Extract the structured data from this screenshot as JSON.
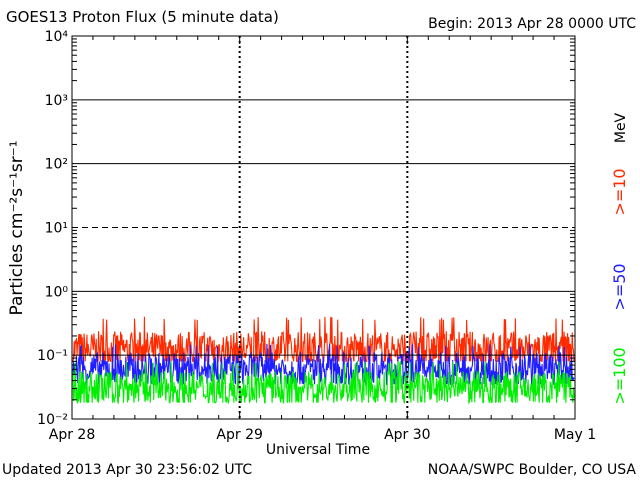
{
  "header": {
    "title": "GOES13 Proton Flux (5 minute data)",
    "begin": "Begin: 2013 Apr 28 0000 UTC"
  },
  "footer": {
    "updated": "Updated 2013 Apr 30 23:56:02 UTC",
    "credit": "NOAA/SWPC Boulder, CO USA"
  },
  "chart_data": {
    "type": "line",
    "title": "GOES13 Proton Flux (5 minute data)",
    "xlabel": "Universal Time",
    "ylabel": "Particles cm⁻²s⁻¹sr⁻¹",
    "yscale": "log",
    "ylim": [
      0.01,
      10000
    ],
    "y_tick_labels": [
      "10⁻²",
      "10⁻¹",
      "10⁰",
      "10¹",
      "10²",
      "10³",
      "10⁴"
    ],
    "x_tick_labels": [
      "Apr 28",
      "Apr 29",
      "Apr 30",
      "May 1"
    ],
    "x_start": "2013-04-28 00:00 UTC",
    "x_end": "2013-05-01 00:00 UTC",
    "thresholds": [
      {
        "value": 10,
        "style": "dashed"
      },
      {
        "value": 0.1,
        "style": "solid"
      }
    ],
    "unit_label": "MeV",
    "series": [
      {
        "name": ">=10",
        "color": "#ff2a00",
        "typical_value": 0.12,
        "min": 0.08,
        "max": 0.4
      },
      {
        "name": ">=50",
        "color": "#1e1eff",
        "typical_value": 0.06,
        "min": 0.035,
        "max": 0.15
      },
      {
        "name": ">=100",
        "color": "#00ee00",
        "typical_value": 0.03,
        "min": 0.018,
        "max": 0.08
      }
    ],
    "grid": true
  }
}
